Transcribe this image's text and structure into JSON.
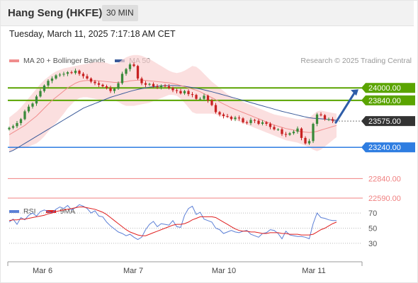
{
  "header": {
    "title": "Hang Seng (HKFE)",
    "interval": "30 MIN"
  },
  "datetime": "Tuesday, March 11, 2025 7:17:18 AM CET",
  "legend": {
    "ma20": "MA 20 + Bollinger Bands",
    "ma50": "MA 50",
    "credit": "Research © 2025 Trading Central",
    "rsi": "RSI",
    "ma9": "9MA"
  },
  "colors": {
    "ma20": "#f08d8d",
    "ma50": "#3a5a99",
    "bands": "#f9d4d4",
    "resistance": "#5aa400",
    "support": "#2e7de1",
    "target": "#f08080",
    "last_price": "#333333",
    "bull_candle": "#3a8a3a",
    "bear_candle": "#c82222",
    "rsi_line": "#5b7fd6",
    "rsi_ma": "#e02020",
    "arrow": "#2e5da8"
  },
  "chart_data": [
    {
      "type": "line",
      "name": "price",
      "x_ticks": [
        "Mar 6",
        "Mar 7",
        "Mar 10",
        "Mar 11"
      ],
      "ylim": [
        22500,
        24400
      ],
      "levels": [
        {
          "value": 24000.0,
          "label": "24000.00",
          "kind": "resistance"
        },
        {
          "value": 23840.0,
          "label": "23840.00",
          "kind": "resistance"
        },
        {
          "value": 23575.0,
          "label": "23575.00",
          "kind": "last"
        },
        {
          "value": 23240.0,
          "label": "23240.00",
          "kind": "support"
        },
        {
          "value": 22840.0,
          "label": "22840.00",
          "kind": "target"
        },
        {
          "value": 22590.0,
          "label": "22590.00",
          "kind": "target"
        }
      ],
      "close": [
        23490,
        23510,
        23550,
        23600,
        23700,
        23760,
        23800,
        23890,
        23960,
        24030,
        24090,
        24120,
        24160,
        24170,
        24180,
        24200,
        24190,
        24220,
        24180,
        24150,
        24120,
        24080,
        24060,
        24040,
        24020,
        24000,
        23960,
        23990,
        24060,
        24180,
        24240,
        24300,
        24280,
        24120,
        24060,
        24040,
        24050,
        24020,
        24010,
        24030,
        24020,
        24000,
        23970,
        23960,
        23930,
        23960,
        23920,
        23910,
        23860,
        23860,
        23900,
        23840,
        23780,
        23690,
        23660,
        23640,
        23630,
        23600,
        23620,
        23610,
        23560,
        23550,
        23590,
        23580,
        23540,
        23560,
        23540,
        23500,
        23470,
        23470,
        23410,
        23400,
        23420,
        23440,
        23480,
        23360,
        23290,
        23320,
        23540,
        23660,
        23650,
        23600,
        23600,
        23580,
        23575
      ],
      "ma20": [
        23400,
        23430,
        23460,
        23490,
        23520,
        23560,
        23600,
        23640,
        23690,
        23740,
        23790,
        23840,
        23880,
        23920,
        23960,
        24000,
        24030,
        24060,
        24080,
        24090,
        24095,
        24095,
        24095,
        24090,
        24085,
        24080,
        24075,
        24070,
        24070,
        24075,
        24080,
        24090,
        24095,
        24100,
        24100,
        24095,
        24090,
        24085,
        24080,
        24075,
        24070,
        24065,
        24055,
        24045,
        24030,
        24015,
        24000,
        23985,
        23970,
        23950,
        23925,
        23900,
        23875,
        23850,
        23820,
        23795,
        23770,
        23745,
        23725,
        23705,
        23685,
        23665,
        23645,
        23625,
        23605,
        23585,
        23565,
        23545,
        23525,
        23510,
        23495,
        23480,
        23470,
        23460,
        23450,
        23440,
        23435,
        23430,
        23435,
        23445,
        23460,
        23475,
        23490,
        23505,
        23520
      ],
      "bb_upper": [
        23620,
        23660,
        23700,
        23750,
        23810,
        23870,
        23930,
        23990,
        24050,
        24100,
        24140,
        24180,
        24210,
        24230,
        24250,
        24260,
        24270,
        24280,
        24290,
        24300,
        24310,
        24320,
        24330,
        24330,
        24330,
        24320,
        24300,
        24300,
        24320,
        24360,
        24390,
        24410,
        24420,
        24420,
        24410,
        24390,
        24370,
        24340,
        24310,
        24280,
        24250,
        24220,
        24200,
        24190,
        24200,
        24220,
        24250,
        24280,
        24270,
        24230,
        24180,
        24130,
        24080,
        24040,
        24000,
        23960,
        23920,
        23890,
        23860,
        23840,
        23820,
        23800,
        23780,
        23760,
        23740,
        23720,
        23700,
        23680,
        23660,
        23650,
        23640,
        23630,
        23620,
        23610,
        23600,
        23600,
        23610,
        23620,
        23660,
        23700,
        23710,
        23700,
        23690,
        23680,
        23670
      ],
      "bb_lower": [
        23180,
        23200,
        23220,
        23230,
        23230,
        23250,
        23270,
        23290,
        23330,
        23380,
        23440,
        23500,
        23550,
        23610,
        23670,
        23740,
        23790,
        23840,
        23870,
        23880,
        23880,
        23870,
        23860,
        23850,
        23840,
        23840,
        23850,
        23840,
        23820,
        23790,
        23770,
        23770,
        23770,
        23780,
        23790,
        23800,
        23810,
        23830,
        23850,
        23870,
        23890,
        23910,
        23910,
        23900,
        23860,
        23810,
        23750,
        23690,
        23670,
        23670,
        23670,
        23670,
        23670,
        23660,
        23640,
        23630,
        23620,
        23600,
        23590,
        23570,
        23550,
        23530,
        23510,
        23490,
        23470,
        23450,
        23430,
        23410,
        23390,
        23370,
        23350,
        23330,
        23320,
        23310,
        23300,
        23280,
        23260,
        23240,
        23210,
        23190,
        23210,
        23250,
        23290,
        23330,
        23370
      ],
      "ma50": [
        23180,
        23200,
        23230,
        23260,
        23290,
        23320,
        23350,
        23380,
        23410,
        23440,
        23470,
        23500,
        23530,
        23560,
        23590,
        23620,
        23650,
        23680,
        23710,
        23740,
        23760,
        23780,
        23800,
        23820,
        23840,
        23860,
        23880,
        23895,
        23910,
        23925,
        23940,
        23955,
        23968,
        23980,
        23990,
        24000,
        24008,
        24015,
        24020,
        24025,
        24028,
        24030,
        24030,
        24028,
        24025,
        24020,
        24012,
        24005,
        23996,
        23986,
        23975,
        23962,
        23950,
        23937,
        23924,
        23910,
        23896,
        23882,
        23868,
        23854,
        23840,
        23826,
        23812,
        23798,
        23784,
        23770,
        23756,
        23742,
        23728,
        23714,
        23700,
        23688,
        23676,
        23664,
        23652,
        23640,
        23628,
        23618,
        23612,
        23608,
        23605,
        23600,
        23595,
        23590,
        23585
      ]
    },
    {
      "type": "line",
      "name": "RSI",
      "y_ticks": [
        70,
        50,
        30
      ],
      "ylim": [
        0,
        100
      ],
      "rsi": [
        58,
        62,
        55,
        64,
        61,
        67,
        70,
        66,
        72,
        74,
        72,
        70,
        75,
        78,
        76,
        80,
        74,
        77,
        81,
        79,
        76,
        70,
        73,
        66,
        65,
        58,
        53,
        49,
        45,
        43,
        40,
        42,
        38,
        35,
        38,
        48,
        55,
        59,
        52,
        56,
        55,
        54,
        60,
        52,
        51,
        67,
        76,
        79,
        68,
        71,
        62,
        60,
        58,
        50,
        48,
        43,
        45,
        47,
        45,
        44,
        46,
        47,
        42,
        40,
        38,
        43,
        44,
        48,
        47,
        43,
        36,
        46,
        41,
        40,
        39,
        39,
        38,
        36,
        56,
        70,
        64,
        63,
        61,
        60,
        60
      ],
      "ma9": [
        60,
        61,
        61,
        62,
        62,
        63,
        64,
        65,
        66,
        67,
        69,
        70,
        72,
        73,
        74,
        75,
        76,
        77,
        78,
        78,
        77,
        76,
        75,
        73,
        71,
        68,
        64,
        60,
        56,
        52,
        48,
        45,
        43,
        41,
        40,
        40,
        42,
        44,
        46,
        48,
        50,
        52,
        54,
        55,
        55,
        56,
        58,
        61,
        63,
        65,
        65,
        65,
        65,
        64,
        61,
        58,
        55,
        52,
        49,
        47,
        46,
        46,
        45,
        45,
        44,
        43,
        43,
        44,
        44,
        44,
        43,
        43,
        42,
        42,
        42,
        41,
        41,
        41,
        42,
        45,
        48,
        50,
        53,
        56,
        58
      ]
    }
  ]
}
